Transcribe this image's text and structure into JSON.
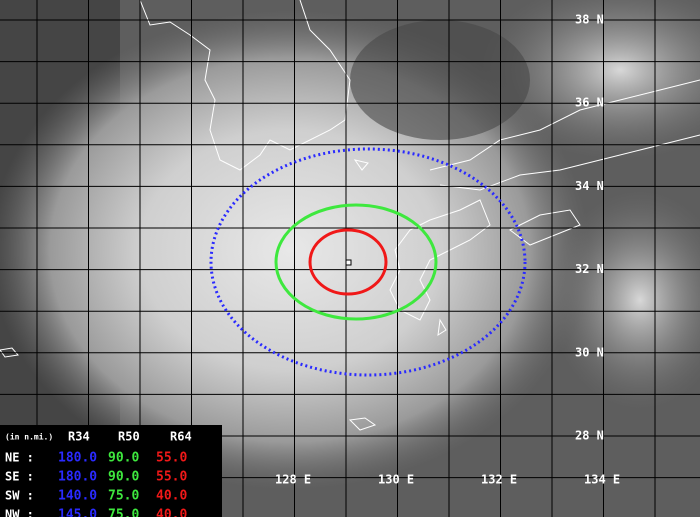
{
  "latitude_labels": [
    "38 N",
    "36 N",
    "34 N",
    "32 N",
    "30 N",
    "28 N"
  ],
  "longitude_labels": [
    "128 E",
    "130 E",
    "132 E",
    "134 E"
  ],
  "radii_table": {
    "unit": "(in n.mi.)",
    "headers": [
      "R34",
      "R50",
      "R64"
    ],
    "rows": [
      {
        "quadrant": "NE :",
        "values": [
          "180.0",
          "90.0",
          "55.0"
        ]
      },
      {
        "quadrant": "SE :",
        "values": [
          "180.0",
          "90.0",
          "55.0"
        ]
      },
      {
        "quadrant": "SW :",
        "values": [
          "140.0",
          "75.0",
          "40.0"
        ]
      },
      {
        "quadrant": "NW :",
        "values": [
          "145.0",
          "75.0",
          "40.0"
        ]
      }
    ]
  }
}
